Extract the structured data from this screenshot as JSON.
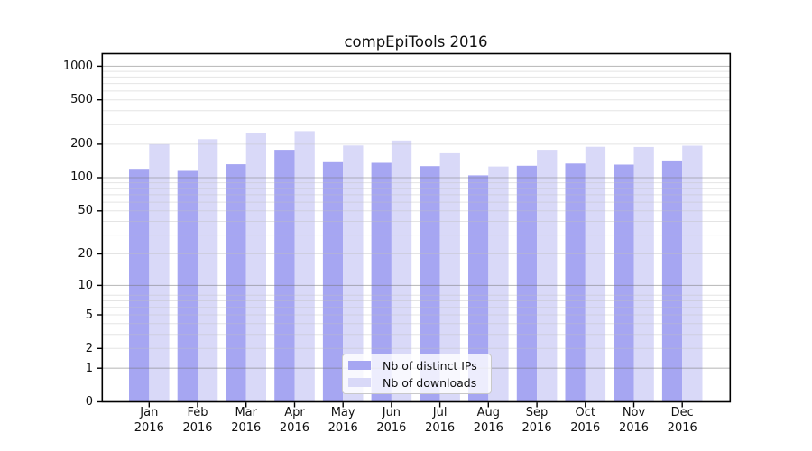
{
  "window": {
    "background": "#ffffff"
  },
  "chart_data": {
    "type": "bar",
    "title": "compEpiTools 2016",
    "categories": [
      "Jan 2016",
      "Feb 2016",
      "Mar 2016",
      "Apr 2016",
      "May 2016",
      "Jun 2016",
      "Jul 2016",
      "Aug 2016",
      "Sep 2016",
      "Oct 2016",
      "Nov 2016",
      "Dec 2016"
    ],
    "series": [
      {
        "name": "Nb of distinct IPs",
        "color": "#a6a6f2",
        "values": [
          120,
          115,
          132,
          178,
          138,
          136,
          127,
          105,
          128,
          134,
          131,
          143
        ]
      },
      {
        "name": "Nb of downloads",
        "color": "#d9d9f8",
        "values": [
          200,
          222,
          252,
          262,
          195,
          216,
          166,
          126,
          178,
          190,
          189,
          194
        ]
      }
    ],
    "xlabel": "",
    "ylabel": "",
    "y_axis": {
      "scale": "log10(1+x)",
      "tick_values": [
        0,
        1,
        2,
        5,
        10,
        20,
        50,
        100,
        200,
        500,
        1000
      ],
      "range": [
        0,
        1310
      ],
      "grid": "major and minor horizontal gridlines, drawn over bars"
    },
    "legend": {
      "position": "inside bottom-center",
      "frame": true
    }
  },
  "colors": {
    "bar_distinct_ips": "#a6a6f2",
    "bar_downloads": "#d9d9f8",
    "major_gridline": "#b5b5b5",
    "minor_gridline": "#e7e7e7",
    "axis_frame": "#000000",
    "tick_label": "#111111",
    "legend_border": "#c9c9c9",
    "legend_background": "rgba(255,255,255,0.8)"
  }
}
